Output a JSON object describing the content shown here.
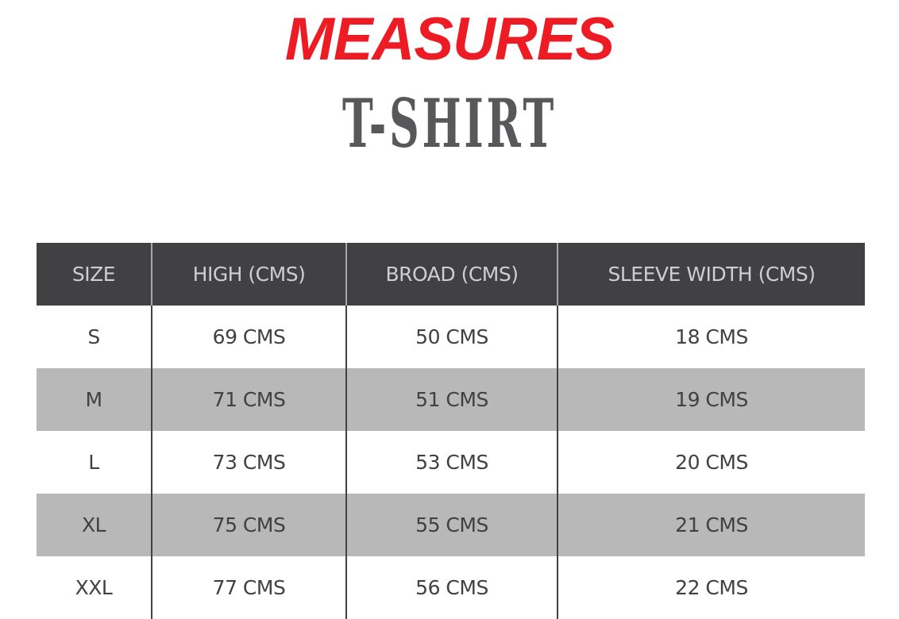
{
  "title": "MEASURES",
  "subtitle": "T-SHIRT",
  "colors": {
    "title": "#ed1c24",
    "subtitle": "#58585a",
    "header_bg": "#414042",
    "alt_row_bg": "#b7b8b7"
  },
  "table": {
    "headers": [
      "SIZE",
      "HIGH (CMS)",
      "BROAD (CMS)",
      "SLEEVE WIDTH (CMS)"
    ],
    "rows": [
      [
        "S",
        "69 CMS",
        "50 CMS",
        "18 CMS"
      ],
      [
        "M",
        "71 CMS",
        "51 CMS",
        "19 CMS"
      ],
      [
        "L",
        "73 CMS",
        "53 CMS",
        "20 CMS"
      ],
      [
        "XL",
        "75 CMS",
        "55 CMS",
        "21 CMS"
      ],
      [
        "XXL",
        "77 CMS",
        "56 CMS",
        "22 CMS"
      ]
    ]
  }
}
